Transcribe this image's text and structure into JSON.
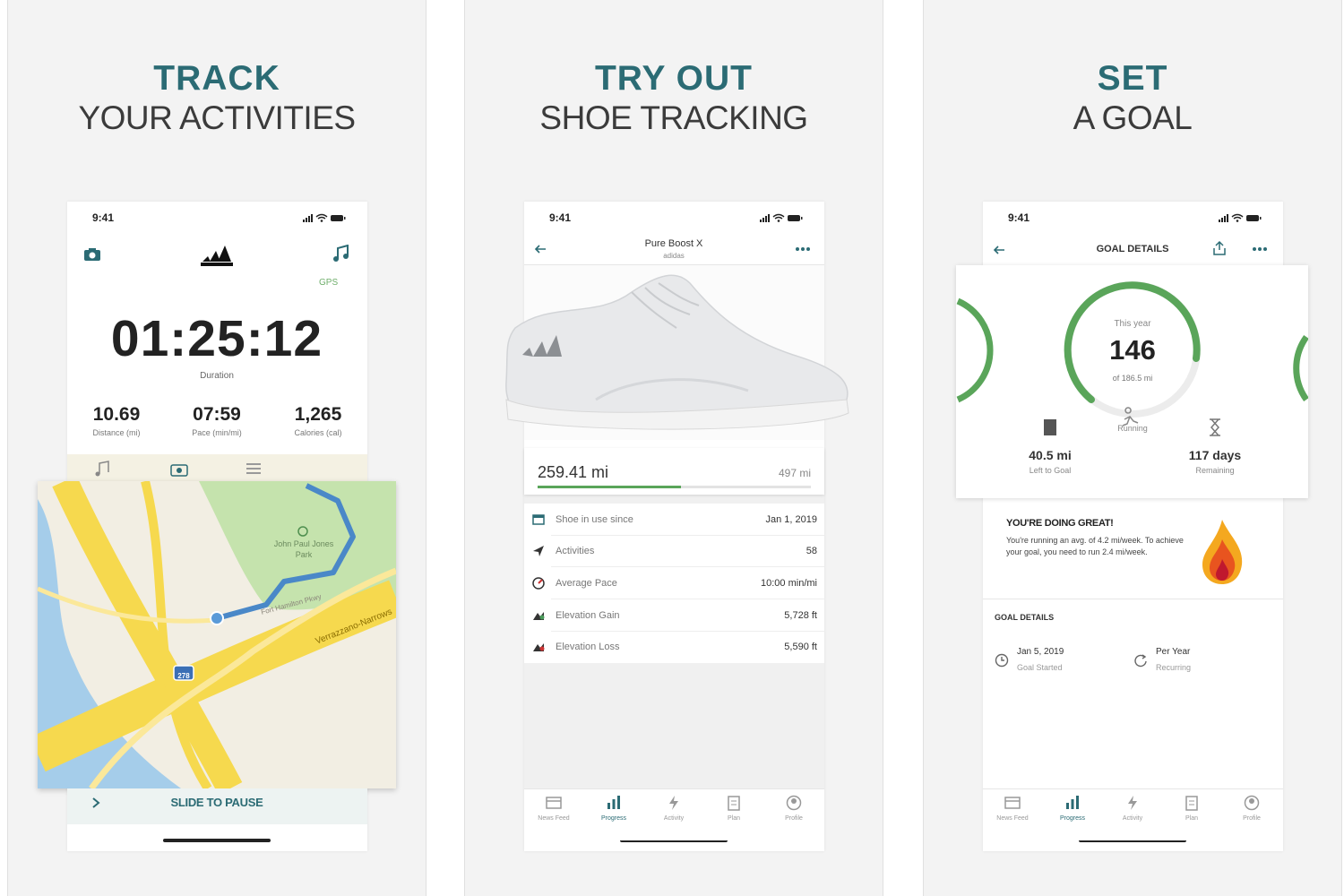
{
  "panels": [
    {
      "heading": "TRACK",
      "subheading": "YOUR ACTIVITIES",
      "status_time": "9:41",
      "gps": "GPS",
      "timer": "01:25:12",
      "timer_label": "Duration",
      "stats": [
        {
          "value": "10.69",
          "label": "Distance (mi)"
        },
        {
          "value": "07:59",
          "label": "Pace (min/mi)"
        },
        {
          "value": "1,265",
          "label": "Calories (cal)"
        }
      ],
      "map_labels": [
        "John Paul Jones Park",
        "Fort Hamilton Pkwy",
        "Verrazzano-Narrows",
        "278"
      ],
      "slider": "SLIDE TO PAUSE"
    },
    {
      "heading": "TRY OUT",
      "subheading": "SHOE TRACKING",
      "status_time": "9:41",
      "shoe_name": "Pure Boost X",
      "brand": "adidas",
      "distance": "259.41 mi",
      "target": "497 mi",
      "rows": [
        {
          "label": "Shoe in use since",
          "value": "Jan 1, 2019"
        },
        {
          "label": "Activities",
          "value": "58"
        },
        {
          "label": "Average Pace",
          "value": "10:00 min/mi"
        },
        {
          "label": "Elevation Gain",
          "value": "5,728 ft"
        },
        {
          "label": "Elevation Loss",
          "value": "5,590 ft"
        }
      ],
      "tabs": [
        "News Feed",
        "Progress",
        "Activity",
        "Plan",
        "Profile"
      ]
    },
    {
      "heading": "SET",
      "subheading": "A GOAL",
      "status_time": "9:41",
      "screen_title": "GOAL DETAILS",
      "ring_caption": "This year",
      "ring_value": "146",
      "ring_sub": "of 186.5 mi",
      "sport": "Running",
      "stats": [
        {
          "value": "40.5 mi",
          "label": "Left to Goal"
        },
        {
          "value": "117 days",
          "label": "Remaining"
        }
      ],
      "message_title": "YOU'RE DOING GREAT!",
      "message": "You're running an avg. of 4.2 mi/week. To achieve your goal, you need to run 2.4 mi/week.",
      "section_title": "GOAL DETAILS",
      "details": [
        {
          "value": "Jan 5, 2019",
          "label": "Goal Started"
        },
        {
          "value": "Per Year",
          "label": "Recurring"
        }
      ],
      "tabs": [
        "News Feed",
        "Progress",
        "Activity",
        "Plan",
        "Profile"
      ]
    }
  ]
}
